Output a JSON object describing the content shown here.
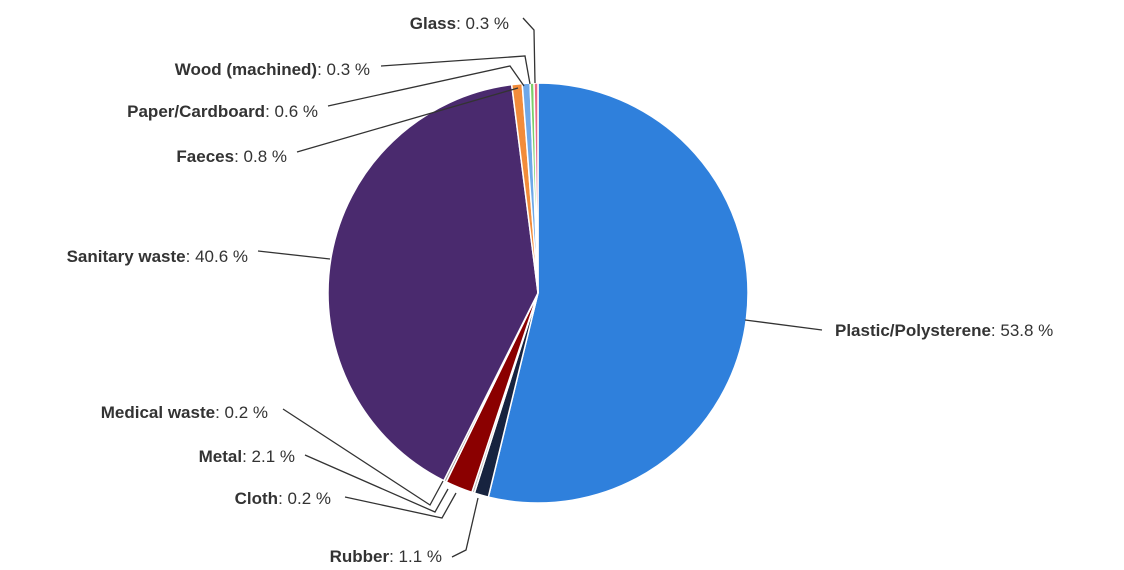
{
  "chart_data": {
    "type": "pie",
    "title": "",
    "value_suffix": " %",
    "slices": [
      {
        "name": "Plastic/Polysterene",
        "value": 53.8,
        "display": "53.8",
        "color": "#2f80dc"
      },
      {
        "name": "Rubber",
        "value": 1.1,
        "display": "1.1",
        "color": "#17233f"
      },
      {
        "name": "Cloth",
        "value": 0.2,
        "display": "0.2",
        "color": "#b8b8b8"
      },
      {
        "name": "Metal",
        "value": 2.1,
        "display": "2.1",
        "color": "#8b0000"
      },
      {
        "name": "Medical waste",
        "value": 0.2,
        "display": "0.2",
        "color": "#9a9a9a"
      },
      {
        "name": "Sanitary waste",
        "value": 40.6,
        "display": "40.6",
        "color": "#4a2a6e"
      },
      {
        "name": "Faeces",
        "value": 0.8,
        "display": "0.8",
        "color": "#f28c3a"
      },
      {
        "name": "Paper/Cardboard",
        "value": 0.6,
        "display": "0.6",
        "color": "#6fa8e8"
      },
      {
        "name": "Wood (machined)",
        "value": 0.3,
        "display": "0.3",
        "color": "#7ccf6a"
      },
      {
        "name": "Glass",
        "value": 0.3,
        "display": "0.3",
        "color": "#e86a8a"
      }
    ]
  }
}
